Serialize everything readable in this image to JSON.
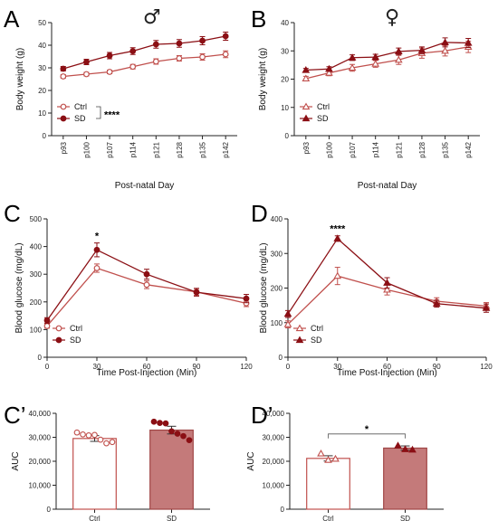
{
  "figure": {
    "panel_letters": [
      "A",
      "B",
      "C",
      "D",
      "C’",
      "D’"
    ],
    "sex_symbols": {
      "male": "♂",
      "female": "♀"
    },
    "colors": {
      "ctrl": "#c0504d",
      "sd": "#8b0f14",
      "bar_sd_fill": "#c47a7a",
      "bar_sd_stroke": "#a04545"
    }
  },
  "chart_data": [
    {
      "id": "A",
      "type": "line",
      "markers": "circle",
      "title": "",
      "xlabel": "Post-natal Day",
      "ylabel": "Body weight (g)",
      "categories": [
        "p93",
        "p100",
        "p107",
        "p114",
        "p121",
        "p128",
        "p135",
        "p142"
      ],
      "ylim": [
        0,
        50
      ],
      "yticks": [
        "0",
        "10",
        "20",
        "30",
        "40",
        "50"
      ],
      "series": [
        {
          "name": "Ctrl",
          "values": [
            26.2,
            27.2,
            28.2,
            30.5,
            32.8,
            34.2,
            34.8,
            36.0
          ],
          "err": [
            0.8,
            0.8,
            0.8,
            1.0,
            1.2,
            1.2,
            1.4,
            1.5
          ]
        },
        {
          "name": "SD",
          "values": [
            29.6,
            32.6,
            35.4,
            37.4,
            40.4,
            40.8,
            42.0,
            44.0
          ],
          "err": [
            1.0,
            1.2,
            1.4,
            1.5,
            1.7,
            1.7,
            1.8,
            1.8
          ]
        }
      ],
      "legend_position": "bottom-left",
      "significance": "****"
    },
    {
      "id": "B",
      "type": "line",
      "markers": "triangle",
      "title": "",
      "xlabel": "Post-natal Day",
      "ylabel": "Body weight (g)",
      "categories": [
        "p93",
        "p100",
        "p107",
        "p114",
        "p121",
        "p128",
        "p135",
        "p142"
      ],
      "ylim": [
        0,
        40
      ],
      "yticks": [
        "0",
        "10",
        "20",
        "30",
        "40"
      ],
      "series": [
        {
          "name": "Ctrl",
          "values": [
            20.2,
            22.2,
            24.0,
            25.4,
            26.8,
            29.2,
            30.0,
            31.4
          ],
          "err": [
            0.8,
            1.0,
            1.2,
            1.2,
            1.6,
            1.8,
            1.8,
            2.0
          ]
        },
        {
          "name": "SD",
          "values": [
            23.2,
            23.6,
            27.6,
            27.8,
            29.8,
            30.2,
            33.0,
            32.8
          ],
          "err": [
            0.6,
            0.8,
            1.0,
            1.0,
            1.2,
            1.2,
            1.6,
            1.6
          ]
        }
      ],
      "legend_position": "bottom-left"
    },
    {
      "id": "C",
      "type": "line",
      "markers": "circle",
      "title": "",
      "xlabel": "Time Post-Injection (Min)",
      "ylabel": "Blood glucose (mg/dL)",
      "x": [
        0,
        30,
        60,
        90,
        120
      ],
      "xticks": [
        "0",
        "30",
        "60",
        "90",
        "120"
      ],
      "ylim": [
        0,
        500
      ],
      "yticks": [
        "0",
        "100",
        "200",
        "300",
        "400",
        "500"
      ],
      "series": [
        {
          "name": "Ctrl",
          "values": [
            113,
            322,
            262,
            236,
            195
          ],
          "err": [
            8,
            15,
            14,
            12,
            12
          ]
        },
        {
          "name": "SD",
          "values": [
            133,
            388,
            300,
            235,
            212
          ],
          "err": [
            10,
            25,
            18,
            14,
            15
          ]
        }
      ],
      "legend_position": "bottom-left",
      "annotations": [
        {
          "x": 30,
          "text": "*"
        }
      ]
    },
    {
      "id": "D",
      "type": "line",
      "markers": "triangle",
      "title": "",
      "xlabel": "Time Post-Injection (Min)",
      "ylabel": "Blood glucose (mg/dL)",
      "x": [
        0,
        30,
        60,
        90,
        120
      ],
      "xticks": [
        "0",
        "30",
        "60",
        "90",
        "120"
      ],
      "ylim": [
        0,
        400
      ],
      "yticks": [
        "0",
        "100",
        "200",
        "300",
        "400"
      ],
      "series": [
        {
          "name": "Ctrl",
          "values": [
            95,
            235,
            195,
            162,
            148
          ],
          "err": [
            10,
            25,
            15,
            10,
            10
          ]
        },
        {
          "name": "SD",
          "values": [
            125,
            343,
            215,
            155,
            142
          ],
          "err": [
            10,
            8,
            15,
            10,
            12
          ]
        }
      ],
      "legend_position": "bottom-left",
      "annotations": [
        {
          "x": 30,
          "text": "****"
        }
      ]
    },
    {
      "id": "C’",
      "type": "bar",
      "title": "",
      "xlabel": "",
      "ylabel": "AUC",
      "categories": [
        "Ctrl",
        "SD"
      ],
      "values": [
        29500,
        33000
      ],
      "err": [
        1200,
        1600
      ],
      "ylim": [
        0,
        40000
      ],
      "yticks": [
        "0",
        "10,000",
        "20,000",
        "30,000",
        "40,000"
      ],
      "points": [
        [
          32000,
          31200,
          30800,
          31000,
          29000,
          27500,
          28000
        ],
        [
          36500,
          36000,
          35800,
          32500,
          31500,
          30500,
          28800
        ]
      ]
    },
    {
      "id": "D’",
      "type": "bar",
      "title": "",
      "xlabel": "",
      "ylabel": "AUC",
      "categories": [
        "Ctrl",
        "SD"
      ],
      "values": [
        21200,
        25500
      ],
      "err": [
        1100,
        900
      ],
      "ylim": [
        0,
        40000
      ],
      "yticks": [
        "0",
        "10,000",
        "20,000",
        "30,000",
        "40,000"
      ],
      "points": [
        [
          23200,
          20500,
          21000
        ],
        [
          26500,
          25000,
          24800
        ]
      ],
      "significance": "*"
    }
  ]
}
